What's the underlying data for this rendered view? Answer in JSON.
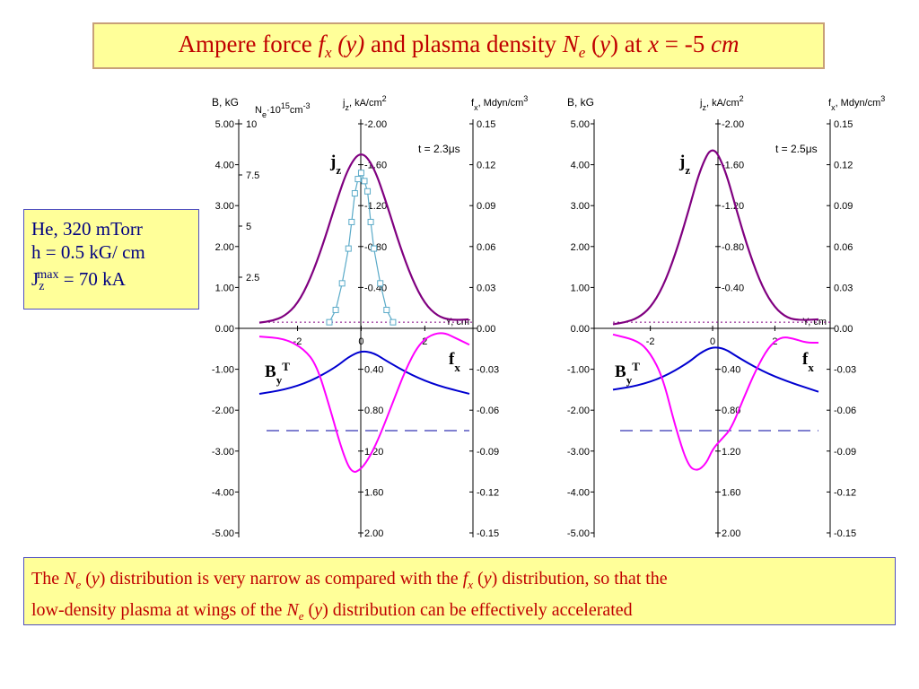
{
  "title": {
    "text1": "Ampere force ",
    "f_sym": "f",
    "f_sub": "x",
    "arg1": " (y)",
    "text2": " and plasma density ",
    "n_sym": "N",
    "n_sub": "e",
    "arg2a": " (",
    "arg2y": "y",
    "arg2b": ")",
    "text3": " at ",
    "x_sym": "x",
    "text4": " = -5 ",
    "unit": "cm"
  },
  "params": {
    "line1": "He, 320 mTorr",
    "line2": "h = 0.5 kG/ cm",
    "j_sym": "J",
    "j_sub": "z",
    "j_sup": "max",
    "j_val": " = 70 kA"
  },
  "note": {
    "t1": "The ",
    "n1": "N",
    "n1sub": "e",
    "a1": " (",
    "y1": "y",
    "b1": ") distribution is very narrow as compared with the ",
    "f1": "f",
    "f1sub": "x",
    "a2": " (",
    "y2": "y",
    "b2": ") distribution, so that the",
    "t2": "low-density plasma at wings of the ",
    "n2": "N",
    "n2sub": "e",
    "a3": " (",
    "y3": "y",
    "b3": ") distribution can be effectively accelerated"
  },
  "colors": {
    "jz": "#800080",
    "ne": "#5aaac8",
    "by": "#0000d0",
    "fx": "#ff00ff",
    "dash": "#0000a0"
  },
  "chart_data": [
    {
      "type": "line",
      "time_label": "t = 2.3μs",
      "axis_b_label": "B, kG",
      "axis_ne_label": "N",
      "axis_ne_sub": "e",
      "axis_ne_rest": "·10",
      "axis_ne_sup": "15",
      "axis_ne_unit": "cm",
      "axis_ne_unit_sup": "-3",
      "axis_j_label": "j",
      "axis_j_sub": "z",
      "axis_j_unit": ", kA/cm",
      "axis_j_unit_sup": "2",
      "axis_f_label": "f",
      "axis_f_sub": "x",
      "axis_f_unit": ", Mdyn/cm",
      "axis_f_unit_sup": "3",
      "y_axis_label": "Y, cm",
      "b_ticks": [
        "5.00",
        "4.00",
        "3.00",
        "2.00",
        "1.00",
        "0.00",
        "-1.00",
        "-2.00",
        "-3.00",
        "-4.00",
        "-5.00"
      ],
      "ne_ticks": [
        "10",
        "7.5",
        "5",
        "2.5"
      ],
      "j_ticks": [
        "-2.00",
        "-1.60",
        "-1.20",
        "-0.80",
        "-0.40",
        "0.40",
        "0.80",
        "1.20",
        "1.60",
        "2.00"
      ],
      "f_ticks": [
        "0.15",
        "0.12",
        "0.09",
        "0.06",
        "0.03",
        "0.00",
        "-0.03",
        "-0.06",
        "-0.09",
        "-0.12",
        "-0.15"
      ],
      "y_ticks": [
        "-2",
        "0",
        "2"
      ],
      "lbl_jz": "j",
      "lbl_jz_sub": "z",
      "lbl_by": "B",
      "lbl_by_sub": "y",
      "lbl_by_sup": "T",
      "lbl_fx": "f",
      "lbl_fx_sub": "x",
      "xlim": [
        -3.2,
        3.4
      ],
      "blim": [
        -5,
        5
      ],
      "jz": {
        "name": "jz",
        "x": [
          -3.2,
          -2.8,
          -2.4,
          -2.0,
          -1.6,
          -1.2,
          -0.8,
          -0.4,
          0,
          0.4,
          0.8,
          1.2,
          1.6,
          2.0,
          2.4,
          2.8,
          3.4
        ],
        "values": [
          0.14,
          0.18,
          0.3,
          0.6,
          1.2,
          2.05,
          3.05,
          3.95,
          4.35,
          3.95,
          3.05,
          2.05,
          1.2,
          0.6,
          0.3,
          0.2,
          0.22
        ]
      },
      "ne": {
        "name": "Ne",
        "x": [
          -1.0,
          -0.8,
          -0.6,
          -0.4,
          -0.3,
          -0.2,
          -0.1,
          0,
          0.1,
          0.2,
          0.3,
          0.4,
          0.6,
          0.8,
          1.0
        ],
        "values": [
          0.15,
          0.45,
          1.1,
          1.95,
          2.6,
          3.3,
          3.65,
          3.8,
          3.6,
          3.35,
          2.6,
          1.95,
          1.1,
          0.45,
          0.15
        ],
        "scale_note": "B units"
      },
      "by": {
        "name": "By",
        "x": [
          -3.2,
          -2.4,
          -1.6,
          -0.8,
          -0.4,
          0,
          0.4,
          0.8,
          1.6,
          2.4,
          3.4
        ],
        "values": [
          -1.6,
          -1.5,
          -1.3,
          -0.95,
          -0.7,
          -0.55,
          -0.6,
          -0.8,
          -1.15,
          -1.4,
          -1.6
        ]
      },
      "fx": {
        "name": "fx",
        "x": [
          -3.2,
          -2.4,
          -1.8,
          -1.4,
          -1.0,
          -0.6,
          -0.3,
          0,
          0.3,
          0.6,
          1.0,
          1.4,
          1.8,
          2.2,
          2.6,
          3.0,
          3.4
        ],
        "values": [
          -0.2,
          -0.25,
          -0.5,
          -0.9,
          -1.9,
          -3.0,
          -3.55,
          -3.45,
          -3.1,
          -2.6,
          -1.8,
          -1.0,
          -0.4,
          -0.15,
          -0.1,
          -0.25,
          -0.4
        ]
      },
      "dash_level": -2.5,
      "dotted_level": 0.15
    },
    {
      "type": "line",
      "time_label": "t = 2.5μs",
      "axis_b_label": "B, kG",
      "axis_j_label": "j",
      "axis_j_sub": "z",
      "axis_j_unit": ", kA/cm",
      "axis_j_unit_sup": "2",
      "axis_f_label": "f",
      "axis_f_sub": "x",
      "axis_f_unit": ", Mdyn/cm",
      "axis_f_unit_sup": "3",
      "y_axis_label": "Y, cm",
      "b_ticks": [
        "5.00",
        "4.00",
        "3.00",
        "2.00",
        "1.00",
        "0.00",
        "-1.00",
        "-2.00",
        "-3.00",
        "-4.00",
        "-5.00"
      ],
      "j_ticks": [
        "-2.00",
        "-1.60",
        "-1.20",
        "-0.80",
        "-0.40",
        "0.40",
        "0.80",
        "1.20",
        "1.60",
        "2.00"
      ],
      "f_ticks": [
        "0.15",
        "0.12",
        "0.09",
        "0.06",
        "0.03",
        "0.00",
        "-0.03",
        "-0.06",
        "-0.09",
        "-0.12",
        "-0.15"
      ],
      "y_ticks": [
        "-2",
        "0",
        "2"
      ],
      "lbl_jz": "j",
      "lbl_jz_sub": "z",
      "lbl_by": "B",
      "lbl_by_sub": "y",
      "lbl_by_sup": "T",
      "lbl_fx": "f",
      "lbl_fx_sub": "x",
      "xlim": [
        -3.2,
        3.4
      ],
      "blim": [
        -5,
        5
      ],
      "jz": {
        "name": "jz",
        "x": [
          -3.2,
          -2.8,
          -2.4,
          -2.0,
          -1.6,
          -1.2,
          -0.8,
          -0.4,
          0,
          0.4,
          0.8,
          1.2,
          1.6,
          2.0,
          2.4,
          2.8,
          3.4
        ],
        "values": [
          0.1,
          0.15,
          0.25,
          0.5,
          1.0,
          1.8,
          2.8,
          3.9,
          4.5,
          3.9,
          2.8,
          1.8,
          1.0,
          0.5,
          0.25,
          0.2,
          0.22
        ]
      },
      "by": {
        "name": "By",
        "x": [
          -3.2,
          -2.4,
          -1.6,
          -0.8,
          -0.4,
          0,
          0.4,
          0.8,
          1.6,
          2.4,
          3.4
        ],
        "values": [
          -1.5,
          -1.4,
          -1.2,
          -0.85,
          -0.6,
          -0.45,
          -0.5,
          -0.7,
          -1.05,
          -1.3,
          -1.55
        ]
      },
      "fx": {
        "name": "fx",
        "x": [
          -3.2,
          -2.4,
          -2.0,
          -1.6,
          -1.2,
          -0.8,
          -0.5,
          -0.2,
          0,
          0.3,
          0.6,
          1.0,
          1.4,
          1.8,
          2.2,
          2.6,
          3.0,
          3.4
        ],
        "values": [
          -0.15,
          -0.3,
          -0.6,
          -1.2,
          -2.4,
          -3.35,
          -3.5,
          -3.3,
          -2.95,
          -2.7,
          -2.45,
          -1.7,
          -1.0,
          -0.45,
          -0.2,
          -0.25,
          -0.35,
          -0.35
        ]
      },
      "dash_level": -2.5,
      "dotted_level": 0.15
    }
  ]
}
